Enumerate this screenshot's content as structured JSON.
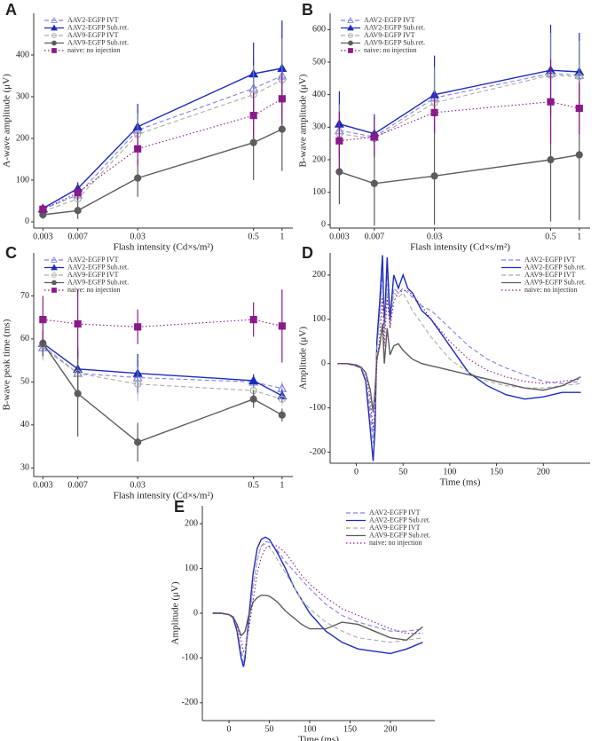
{
  "chart_data": [
    {
      "type": "line",
      "label": "A",
      "ylabel": "A-wave amplitude (μV)",
      "xlabel": "Flash intensity (Cd×s/m²)",
      "xscale": "log",
      "x": [
        0.003,
        0.007,
        0.03,
        0.5,
        1
      ],
      "xlim": [
        0.0024,
        1.3
      ],
      "xticks": [
        0.003,
        0.007,
        0.03,
        0.5,
        1
      ],
      "ylim": [
        -15,
        500
      ],
      "yticks": [
        0,
        100,
        200,
        300,
        400
      ],
      "legend": "upper left",
      "series": [
        {
          "name": "AAV2-EGFP IVT",
          "color": "#8080ee",
          "dash": "dashed",
          "marker": "open-triangle",
          "values": [
            30,
            65,
            220,
            320,
            350
          ],
          "errors": [
            10,
            15,
            50,
            70,
            100
          ]
        },
        {
          "name": "AAV2-EGFP Sub.ret.",
          "color": "#1c2cbf",
          "dash": "solid",
          "marker": "triangle",
          "values": [
            32,
            80,
            228,
            355,
            368
          ],
          "errors": [
            10,
            15,
            55,
            75,
            115
          ]
        },
        {
          "name": "AAV9-EGFP IVT",
          "color": "#a9afa3",
          "dash": "dashed",
          "marker": "open-circle",
          "values": [
            25,
            55,
            210,
            305,
            340
          ],
          "errors": [
            10,
            15,
            50,
            70,
            100
          ]
        },
        {
          "name": "AAV9-EGFP Sub.ret.",
          "color": "#5c5c5c",
          "dash": "solid",
          "marker": "circle",
          "values": [
            17,
            27,
            105,
            190,
            222
          ],
          "errors": [
            10,
            20,
            45,
            90,
            100
          ]
        },
        {
          "name": "naive: no injection",
          "color": "#8a1a8a",
          "dash": "dotted",
          "marker": "square",
          "values": [
            30,
            70,
            175,
            255,
            295
          ],
          "errors": [
            10,
            20,
            40,
            55,
            60
          ]
        }
      ]
    },
    {
      "type": "line",
      "label": "B",
      "ylabel": "B-wave amplitude (μV)",
      "xlabel": "Flash intensity (Cd×s/m²)",
      "xscale": "log",
      "x": [
        0.003,
        0.007,
        0.03,
        0.5,
        1
      ],
      "xlim": [
        0.0024,
        1.3
      ],
      "xticks": [
        0.003,
        0.007,
        0.03,
        0.5,
        1
      ],
      "ylim": [
        -10,
        650
      ],
      "yticks": [
        0,
        100,
        200,
        300,
        400,
        500,
        600
      ],
      "legend": "upper left",
      "series": [
        {
          "name": "AAV2-EGFP IVT",
          "color": "#8080ee",
          "dash": "dashed",
          "marker": "open-triangle",
          "values": [
            290,
            270,
            390,
            465,
            460
          ],
          "errors": [
            90,
            60,
            110,
            130,
            110
          ]
        },
        {
          "name": "AAV2-EGFP Sub.ret.",
          "color": "#1c2cbf",
          "dash": "solid",
          "marker": "triangle",
          "values": [
            310,
            280,
            400,
            475,
            470
          ],
          "errors": [
            100,
            60,
            120,
            140,
            120
          ]
        },
        {
          "name": "AAV9-EGFP IVT",
          "color": "#a9afa3",
          "dash": "dashed",
          "marker": "open-circle",
          "values": [
            280,
            265,
            375,
            460,
            455
          ],
          "errors": [
            90,
            60,
            110,
            130,
            110
          ]
        },
        {
          "name": "AAV9-EGFP Sub.ret.",
          "color": "#5c5c5c",
          "dash": "solid",
          "marker": "circle",
          "values": [
            163,
            127,
            150,
            200,
            215
          ],
          "errors": [
            100,
            130,
            150,
            190,
            200
          ]
        },
        {
          "name": "naive: no injection",
          "color": "#8a1a8a",
          "dash": "dotted",
          "marker": "square",
          "values": [
            258,
            270,
            345,
            378,
            358
          ],
          "errors": [
            90,
            60,
            60,
            130,
            80
          ]
        }
      ]
    },
    {
      "type": "line",
      "label": "C",
      "ylabel": "B-wave peak time (ms)",
      "xlabel": "Flash intensity (Cd×s/m²)",
      "xscale": "log",
      "x": [
        0.003,
        0.007,
        0.03,
        0.5,
        1
      ],
      "xlim": [
        0.0024,
        1.3
      ],
      "xticks": [
        0.003,
        0.007,
        0.03,
        0.5,
        1
      ],
      "ylim": [
        28,
        80
      ],
      "yticks": [
        30,
        40,
        50,
        60,
        70
      ],
      "legend": "upper left",
      "series": [
        {
          "name": "AAV2-EGFP IVT",
          "color": "#8080ee",
          "dash": "dashed",
          "marker": "open-triangle",
          "values": [
            58,
            52,
            51,
            50,
            48.5
          ],
          "errors": [
            3,
            5,
            4,
            1.5,
            1.5
          ]
        },
        {
          "name": "AAV2-EGFP Sub.ret.",
          "color": "#1c2cbf",
          "dash": "solid",
          "marker": "triangle",
          "values": [
            59,
            53,
            52,
            50.3,
            46.8
          ],
          "errors": [
            3,
            5,
            4.5,
            1.5,
            1.5
          ]
        },
        {
          "name": "AAV9-EGFP IVT",
          "color": "#a9afa3",
          "dash": "dashed",
          "marker": "open-circle",
          "values": [
            58.5,
            52,
            49.5,
            48,
            46
          ],
          "errors": [
            3,
            5,
            4,
            1.5,
            1.5
          ]
        },
        {
          "name": "AAV9-EGFP Sub.ret.",
          "color": "#5c5c5c",
          "dash": "solid",
          "marker": "circle",
          "values": [
            59,
            47.3,
            36,
            46,
            42.3
          ],
          "errors": [
            3,
            10,
            4.5,
            2,
            1.5
          ]
        },
        {
          "name": "naive: no injection",
          "color": "#8a1a8a",
          "dash": "dotted",
          "marker": "square",
          "values": [
            64.5,
            63.5,
            62.8,
            64.5,
            63
          ],
          "errors": [
            5.5,
            8,
            4,
            4,
            8.5
          ]
        }
      ]
    },
    {
      "type": "line",
      "label": "D",
      "ylabel": "Amplitude (μV)",
      "xlabel": "Time (ms)",
      "x": [
        -20,
        -10,
        0,
        5,
        10,
        15,
        18,
        20,
        22,
        25,
        28,
        30,
        33,
        36,
        40,
        45,
        50,
        55,
        60,
        70,
        80,
        90,
        100,
        120,
        140,
        160,
        180,
        200,
        220,
        240
      ],
      "xlim": [
        -28,
        250
      ],
      "xticks": [
        0,
        50,
        100,
        150,
        200
      ],
      "ylim": [
        -225,
        250
      ],
      "yticks": [
        -200,
        -100,
        0,
        100,
        200
      ],
      "legend": "upper right",
      "series": [
        {
          "name": "AAV2-EGFP IVT",
          "color": "#8080ee",
          "dash": "dashed",
          "values": [
            0,
            0,
            -5,
            -10,
            -30,
            -120,
            -180,
            -120,
            40,
            120,
            200,
            80,
            200,
            90,
            170,
            160,
            170,
            160,
            150,
            130,
            120,
            100,
            80,
            40,
            10,
            -10,
            -25,
            -40,
            -45,
            -40
          ]
        },
        {
          "name": "AAV2-EGFP Sub.ret.",
          "color": "#1c2cbf",
          "dash": "solid",
          "values": [
            0,
            0,
            -5,
            -10,
            -40,
            -150,
            -220,
            -150,
            50,
            140,
            245,
            80,
            240,
            100,
            200,
            170,
            200,
            170,
            160,
            120,
            100,
            70,
            40,
            -20,
            -50,
            -70,
            -80,
            -75,
            -65,
            -65
          ]
        },
        {
          "name": "AAV9-EGFP IVT",
          "color": "#a9afa3",
          "dash": "dashed",
          "values": [
            0,
            0,
            -5,
            -10,
            -30,
            -100,
            -160,
            -100,
            30,
            100,
            180,
            70,
            170,
            80,
            160,
            150,
            160,
            140,
            120,
            90,
            60,
            35,
            10,
            -20,
            -40,
            -50,
            -55,
            -55,
            -50,
            -45
          ]
        },
        {
          "name": "AAV9-EGFP Sub.ret.",
          "color": "#5c5c5c",
          "dash": "solid",
          "values": [
            0,
            0,
            -3,
            -8,
            -20,
            -60,
            -110,
            -60,
            10,
            40,
            90,
            0,
            80,
            20,
            40,
            45,
            30,
            20,
            10,
            0,
            -5,
            -10,
            -15,
            -25,
            -35,
            -45,
            -55,
            -60,
            -50,
            -30
          ]
        },
        {
          "name": "naive: no injection",
          "color": "#8a1a8a",
          "dash": "dotted",
          "values": [
            0,
            0,
            -5,
            -8,
            -20,
            -80,
            -150,
            -100,
            0,
            60,
            150,
            40,
            150,
            80,
            140,
            160,
            165,
            165,
            155,
            130,
            100,
            75,
            50,
            10,
            -15,
            -30,
            -40,
            -45,
            -40,
            -35
          ]
        }
      ]
    },
    {
      "type": "line",
      "label": "E",
      "ylabel": "Amplitude (μV)",
      "xlabel": "Time (ms)",
      "x": [
        -20,
        -10,
        0,
        5,
        10,
        15,
        18,
        20,
        25,
        30,
        35,
        40,
        45,
        50,
        55,
        60,
        70,
        80,
        90,
        100,
        120,
        140,
        160,
        180,
        200,
        220,
        240
      ],
      "xlim": [
        -33,
        255
      ],
      "xticks": [
        0,
        50,
        100,
        150,
        200
      ],
      "ylim": [
        -240,
        240
      ],
      "yticks": [
        -200,
        -100,
        0,
        100,
        200
      ],
      "legend": "upper right",
      "series": [
        {
          "name": "AAV2-EGFP IVT",
          "color": "#8080ee",
          "dash": "dashed",
          "values": [
            0,
            0,
            -3,
            -10,
            -35,
            -90,
            -110,
            -95,
            -20,
            60,
            120,
            150,
            160,
            158,
            150,
            140,
            115,
            95,
            75,
            55,
            20,
            -5,
            -20,
            -30,
            -40,
            -40,
            -35
          ]
        },
        {
          "name": "AAV2-EGFP Sub.ret.",
          "color": "#1c2cbf",
          "dash": "solid",
          "values": [
            0,
            0,
            -3,
            -10,
            -40,
            -100,
            -120,
            -100,
            0,
            90,
            145,
            165,
            170,
            165,
            150,
            135,
            100,
            60,
            30,
            0,
            -40,
            -65,
            -80,
            -85,
            -90,
            -80,
            -65
          ]
        },
        {
          "name": "AAV9-EGFP IVT",
          "color": "#a9afa3",
          "dash": "dashed",
          "values": [
            0,
            0,
            -3,
            -8,
            -30,
            -80,
            -100,
            -90,
            -20,
            60,
            120,
            150,
            155,
            148,
            135,
            120,
            90,
            60,
            30,
            10,
            -20,
            -40,
            -55,
            -60,
            -65,
            -60,
            -55
          ]
        },
        {
          "name": "AAV9-EGFP Sub.ret.",
          "color": "#5c5c5c",
          "dash": "solid",
          "values": [
            0,
            0,
            -3,
            -8,
            -25,
            -50,
            -45,
            -40,
            0,
            25,
            35,
            40,
            40,
            38,
            32,
            25,
            5,
            -10,
            -25,
            -35,
            -35,
            -20,
            -25,
            -40,
            -55,
            -60,
            -30
          ]
        },
        {
          "name": "naive: no injection",
          "color": "#8a1a8a",
          "dash": "dotted",
          "values": [
            0,
            0,
            -3,
            -8,
            -25,
            -60,
            -85,
            -80,
            -30,
            30,
            90,
            125,
            145,
            150,
            152,
            150,
            135,
            110,
            85,
            65,
            35,
            10,
            -5,
            -20,
            -35,
            -45,
            -45
          ]
        }
      ]
    }
  ]
}
